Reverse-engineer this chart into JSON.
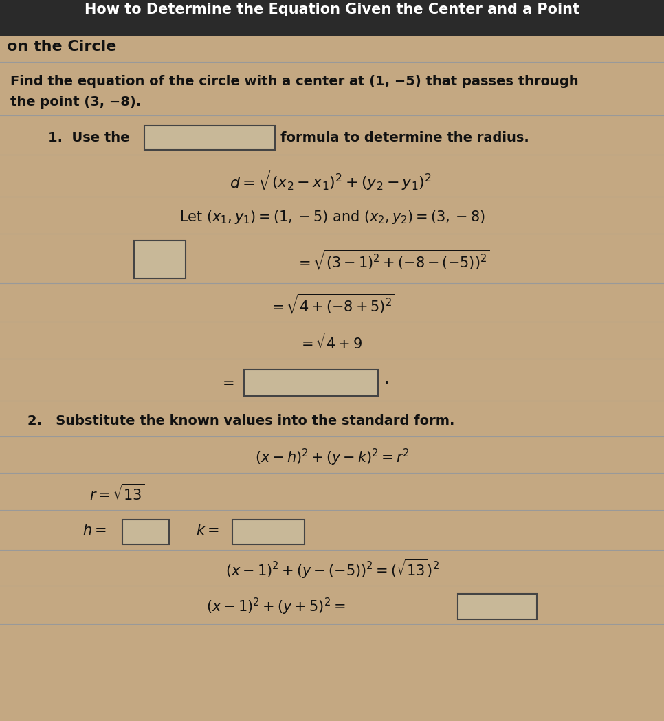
{
  "bg_color": "#c4a882",
  "title_bar_color": "#2a2a2a",
  "title_text": "How to Determine the Equation Given the Center and a Point",
  "subtitle_text": "on the Circle",
  "problem_line1": "Find the equation of the circle with a center at (1, −5) that passes through",
  "problem_line2": "the point (3, −8).",
  "step1_pre": "1.  Use the",
  "step1_post": "formula to determine the radius.",
  "formula_d": "$d = \\sqrt{(x_2 - x_1)^2 + (y_2 - y_1)^2}$",
  "let_text": "Let $(x_1, y_1) = (1, -5)$ and $(x_2, y_2) = (3, -8)$",
  "eq1": "$= \\sqrt{(3-1)^2 + (-8-(-5))^2}$",
  "eq2": "$= \\sqrt{4 + (-8+5)^2}$",
  "eq3": "$= \\sqrt{4+9}$",
  "eq_equals": "$=$",
  "step2_text": "2.   Substitute the known values into the standard form.",
  "standard_form": "$(x - h)^2 + (y - k)^2 = r^2$",
  "r_val": "$r = \\sqrt{13}$",
  "h_label": "$h =$",
  "k_label": "$k =$",
  "final_eq1": "$(x - 1)^2 + (y -(-5))^2 = (\\sqrt{13})^2$",
  "final_eq2": "$(x - 1)^2 + (y + 5)^2 =$",
  "text_color": "#111111",
  "box_face": "#c8b898",
  "box_edge": "#444444",
  "line_color": "#999999",
  "title_fontsize": 15,
  "body_fontsize": 14,
  "math_fontsize": 15,
  "small_fontsize": 13
}
